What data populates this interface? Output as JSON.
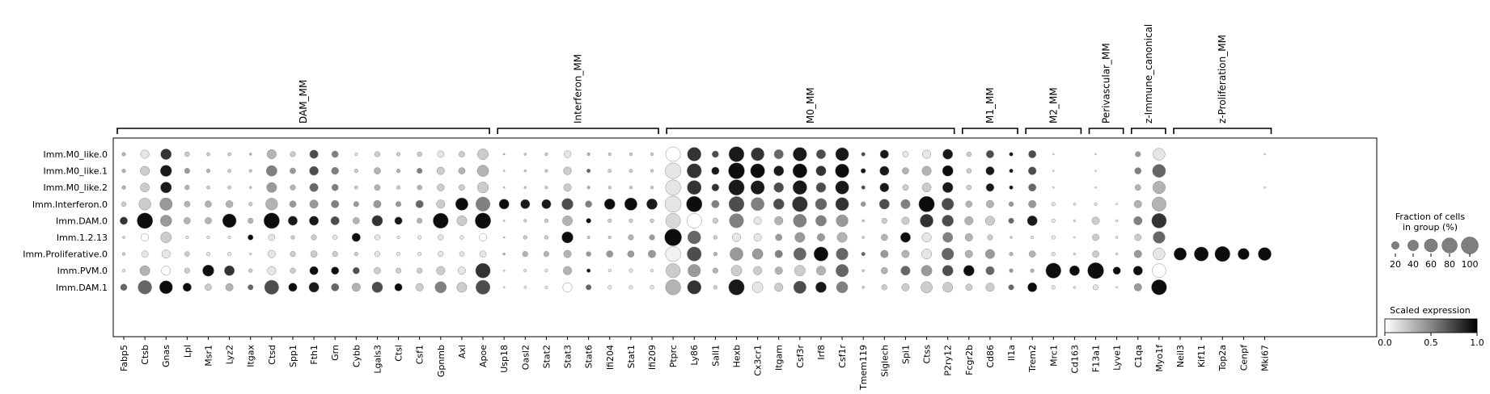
{
  "chart_data": {
    "type": "scatter",
    "subtype": "dotplot",
    "title": "",
    "xlabel": "",
    "ylabel": "",
    "rows": [
      "Imm.M0_like.0",
      "Imm.M0_like.1",
      "Imm.M0_like.2",
      "Imm.Interferon.0",
      "Imm.DAM.0",
      "Imm.1.2.13",
      "Imm.Proliferative.0",
      "Imm.PVM.0",
      "Imm.DAM.1"
    ],
    "columns": [
      "Fabp5",
      "Ctsb",
      "Gnas",
      "Lpl",
      "Msr1",
      "Lyz2",
      "Itgax",
      "Ctsd",
      "Spp1",
      "Fth1",
      "Grn",
      "Cybb",
      "Lgals3",
      "Ctsl",
      "Csf1",
      "Gpnmb",
      "Axl",
      "Apoe",
      "Usp18",
      "Oasl2",
      "Stat2",
      "Stat3",
      "Stat6",
      "Ifi204",
      "Stat1",
      "Ifi209",
      "Ptprc",
      "Ly86",
      "Sall1",
      "Hexb",
      "Cx3cr1",
      "Itgam",
      "Csf3r",
      "Irf8",
      "Csf1r",
      "Tmem119",
      "Siglech",
      "Spi1",
      "Ctss",
      "P2ry12",
      "Fcgr2b",
      "Cd86",
      "Il1a",
      "Trem2",
      "Mrc1",
      "Cd163",
      "F13a1",
      "Lyve1",
      "C1qa",
      "Myo1f",
      "Neil3",
      "Kif11",
      "Top2a",
      "Cenpf",
      "Mki67"
    ],
    "groups": [
      {
        "name": "DAM_MM",
        "start": 0,
        "end": 17
      },
      {
        "name": "Interferon_MM",
        "start": 18,
        "end": 25
      },
      {
        "name": "M0_MM",
        "start": 26,
        "end": 39
      },
      {
        "name": "M1_MM",
        "start": 40,
        "end": 42
      },
      {
        "name": "M2_MM",
        "start": 43,
        "end": 45
      },
      {
        "name": "Perivascular_MM",
        "start": 46,
        "end": 47
      },
      {
        "name": "z-Immune_canonical",
        "start": 48,
        "end": 49
      },
      {
        "name": "z-Proliferation_MM",
        "start": 50,
        "end": 54
      }
    ],
    "fraction": [
      [
        5,
        25,
        40,
        8,
        4,
        4,
        2,
        30,
        10,
        25,
        15,
        3,
        10,
        5,
        8,
        15,
        12,
        40,
        1,
        2,
        3,
        18,
        3,
        3,
        3,
        3,
        75,
        65,
        15,
        80,
        60,
        30,
        65,
        30,
        60,
        5,
        25,
        12,
        25,
        35,
        8,
        20,
        5,
        20,
        1,
        0,
        1,
        0,
        10,
        50,
        0,
        0,
        0,
        0,
        1
      ],
      [
        5,
        30,
        45,
        10,
        5,
        4,
        3,
        40,
        12,
        28,
        18,
        5,
        15,
        5,
        10,
        20,
        15,
        45,
        1,
        2,
        3,
        22,
        5,
        4,
        4,
        3,
        85,
        72,
        20,
        90,
        70,
        35,
        70,
        35,
        65,
        8,
        30,
        15,
        30,
        40,
        8,
        25,
        5,
        22,
        1,
        0,
        1,
        0,
        15,
        60,
        0,
        0,
        0,
        0,
        0
      ],
      [
        5,
        28,
        42,
        8,
        4,
        4,
        2,
        35,
        10,
        25,
        15,
        4,
        12,
        5,
        8,
        18,
        12,
        42,
        1,
        2,
        3,
        20,
        3,
        3,
        3,
        3,
        80,
        68,
        18,
        85,
        65,
        33,
        68,
        33,
        62,
        5,
        28,
        12,
        28,
        38,
        8,
        22,
        5,
        20,
        1,
        0,
        1,
        0,
        12,
        55,
        0,
        0,
        0,
        0,
        1
      ],
      [
        8,
        50,
        55,
        12,
        15,
        18,
        5,
        50,
        15,
        25,
        20,
        10,
        20,
        10,
        20,
        25,
        55,
        70,
        35,
        30,
        30,
        45,
        15,
        40,
        55,
        40,
        90,
        85,
        20,
        80,
        60,
        40,
        80,
        45,
        60,
        8,
        35,
        30,
        85,
        50,
        15,
        20,
        8,
        20,
        5,
        2,
        3,
        1,
        20,
        70,
        0,
        0,
        0,
        0,
        0
      ],
      [
        20,
        85,
        45,
        15,
        15,
        65,
        10,
        85,
        30,
        30,
        25,
        15,
        40,
        20,
        10,
        80,
        35,
        85,
        1,
        3,
        5,
        35,
        8,
        5,
        5,
        5,
        75,
        75,
        10,
        70,
        20,
        25,
        60,
        40,
        50,
        2,
        10,
        20,
        60,
        45,
        25,
        30,
        10,
        35,
        5,
        2,
        20,
        2,
        25,
        75,
        0,
        0,
        0,
        0,
        0
      ],
      [
        2,
        20,
        40,
        3,
        3,
        3,
        10,
        15,
        5,
        10,
        8,
        25,
        10,
        3,
        5,
        10,
        5,
        20,
        1,
        5,
        5,
        45,
        3,
        3,
        10,
        10,
        100,
        60,
        5,
        25,
        20,
        15,
        35,
        20,
        35,
        2,
        15,
        35,
        30,
        35,
        20,
        10,
        2,
        3,
        5,
        1,
        15,
        2,
        15,
        50,
        0,
        0,
        0,
        0,
        0
      ],
      [
        3,
        15,
        25,
        8,
        5,
        5,
        2,
        20,
        10,
        15,
        10,
        5,
        10,
        5,
        5,
        10,
        8,
        15,
        2,
        10,
        10,
        20,
        8,
        15,
        15,
        20,
        80,
        70,
        5,
        60,
        40,
        20,
        55,
        70,
        50,
        5,
        20,
        20,
        35,
        50,
        20,
        30,
        5,
        15,
        5,
        2,
        15,
        2,
        20,
        50,
        55,
        70,
        80,
        45,
        60
      ],
      [
        3,
        35,
        30,
        10,
        45,
        35,
        5,
        25,
        10,
        25,
        20,
        15,
        15,
        10,
        10,
        25,
        20,
        75,
        1,
        3,
        3,
        25,
        5,
        3,
        5,
        3,
        70,
        55,
        10,
        40,
        25,
        20,
        40,
        30,
        55,
        2,
        15,
        30,
        40,
        40,
        40,
        25,
        5,
        5,
        80,
        35,
        90,
        20,
        30,
        65,
        0,
        0,
        0,
        0,
        0
      ],
      [
        15,
        65,
        60,
        25,
        15,
        20,
        10,
        70,
        25,
        35,
        20,
        25,
        40,
        20,
        20,
        45,
        35,
        70,
        1,
        2,
        3,
        30,
        10,
        5,
        5,
        5,
        80,
        65,
        5,
        85,
        40,
        25,
        55,
        40,
        45,
        2,
        10,
        20,
        45,
        35,
        15,
        25,
        10,
        30,
        5,
        2,
        10,
        1,
        20,
        80,
        0,
        0,
        0,
        0,
        0
      ]
    ],
    "scaled": [
      [
        0.3,
        0.1,
        0.8,
        0.2,
        0.2,
        0.2,
        0.3,
        0.3,
        0.2,
        0.7,
        0.5,
        0.1,
        0.2,
        0.2,
        0.2,
        0.1,
        0.2,
        0.2,
        0.3,
        0.2,
        0.2,
        0.1,
        0.3,
        0.2,
        0.2,
        0.2,
        0.0,
        0.8,
        0.7,
        0.9,
        0.8,
        0.6,
        0.9,
        0.7,
        0.9,
        0.7,
        0.9,
        0.1,
        0.1,
        0.9,
        0.2,
        0.7,
        0.9,
        0.7,
        0.1,
        0.1,
        0.1,
        0.1,
        0.4,
        0.1,
        0.1,
        0.1,
        0.1,
        0.1,
        0.1
      ],
      [
        0.3,
        0.2,
        0.9,
        0.4,
        0.3,
        0.2,
        0.2,
        0.5,
        0.4,
        0.7,
        0.5,
        0.2,
        0.3,
        0.3,
        0.5,
        0.2,
        0.3,
        0.3,
        0.2,
        0.2,
        0.2,
        0.2,
        0.6,
        0.2,
        0.2,
        0.2,
        0.1,
        0.8,
        0.9,
        0.95,
        0.95,
        0.9,
        0.95,
        0.8,
        0.95,
        0.9,
        0.9,
        0.3,
        0.3,
        0.95,
        0.2,
        0.9,
        0.9,
        0.7,
        0.1,
        0.1,
        0.1,
        0.1,
        0.5,
        0.6,
        0.1,
        0.1,
        0.1,
        0.1,
        0.1
      ],
      [
        0.3,
        0.2,
        0.9,
        0.3,
        0.2,
        0.2,
        0.2,
        0.4,
        0.3,
        0.6,
        0.5,
        0.2,
        0.3,
        0.2,
        0.3,
        0.2,
        0.2,
        0.2,
        0.2,
        0.2,
        0.2,
        0.2,
        0.3,
        0.2,
        0.2,
        0.2,
        0.1,
        0.8,
        0.8,
        0.9,
        0.9,
        0.7,
        0.9,
        0.7,
        0.9,
        0.7,
        0.9,
        0.2,
        0.2,
        0.9,
        0.2,
        0.9,
        0.9,
        0.6,
        0.1,
        0.1,
        0.1,
        0.1,
        0.3,
        0.3,
        0.1,
        0.1,
        0.1,
        0.1,
        0.1
      ],
      [
        0.2,
        0.2,
        0.4,
        0.3,
        0.3,
        0.3,
        0.2,
        0.3,
        0.4,
        0.4,
        0.5,
        0.4,
        0.4,
        0.4,
        0.6,
        0.2,
        0.95,
        0.5,
        0.95,
        0.9,
        0.9,
        0.7,
        0.5,
        0.95,
        0.95,
        0.9,
        0.1,
        0.95,
        0.5,
        0.7,
        0.5,
        0.7,
        0.8,
        0.6,
        0.8,
        0.4,
        0.7,
        0.5,
        0.95,
        0.7,
        0.3,
        0.3,
        0.4,
        0.4,
        0.1,
        0.1,
        0.1,
        0.1,
        0.3,
        0.3,
        0.1,
        0.1,
        0.1,
        0.1,
        0.1
      ],
      [
        0.8,
        0.95,
        0.4,
        0.3,
        0.3,
        0.95,
        0.3,
        0.95,
        0.9,
        0.9,
        0.7,
        0.3,
        0.8,
        0.9,
        0.3,
        0.95,
        0.2,
        0.95,
        0.2,
        0.2,
        0.2,
        0.3,
        0.95,
        0.2,
        0.2,
        0.2,
        0.15,
        0.0,
        0.2,
        0.5,
        0.1,
        0.3,
        0.5,
        0.5,
        0.4,
        0.2,
        0.2,
        0.2,
        0.8,
        0.7,
        0.3,
        0.2,
        0.6,
        0.9,
        0.1,
        0.1,
        0.2,
        0.1,
        0.5,
        0.8,
        0.1,
        0.1,
        0.1,
        0.1,
        0.1
      ],
      [
        0.2,
        0.0,
        0.2,
        0.1,
        0.1,
        0.1,
        0.95,
        0.1,
        0.2,
        0.2,
        0.1,
        0.95,
        0.1,
        0.1,
        0.1,
        0.1,
        0.1,
        0.0,
        0.2,
        0.2,
        0.2,
        0.95,
        0.2,
        0.2,
        0.3,
        0.4,
        0.95,
        0.6,
        0.2,
        0.1,
        0.1,
        0.4,
        0.4,
        0.4,
        0.3,
        0.2,
        0.3,
        0.95,
        0.1,
        0.5,
        0.3,
        0.2,
        0.2,
        0.1,
        0.1,
        0.1,
        0.2,
        0.1,
        0.2,
        0.6,
        0.1,
        0.1,
        0.1,
        0.1,
        0.1
      ],
      [
        0.2,
        0.1,
        0.1,
        0.2,
        0.1,
        0.1,
        0.1,
        0.1,
        0.2,
        0.2,
        0.2,
        0.2,
        0.1,
        0.1,
        0.1,
        0.1,
        0.1,
        0.1,
        0.3,
        0.3,
        0.3,
        0.3,
        0.4,
        0.4,
        0.4,
        0.4,
        0.05,
        0.7,
        0.3,
        0.4,
        0.4,
        0.5,
        0.6,
        0.95,
        0.6,
        0.6,
        0.4,
        0.3,
        0.1,
        0.6,
        0.3,
        0.4,
        0.3,
        0.3,
        0.1,
        0.1,
        0.2,
        0.1,
        0.4,
        0.1,
        0.95,
        0.95,
        0.95,
        0.95,
        0.95
      ],
      [
        0.1,
        0.3,
        0.0,
        0.2,
        0.95,
        0.8,
        0.2,
        0.1,
        0.2,
        0.95,
        0.95,
        0.7,
        0.2,
        0.2,
        0.2,
        0.2,
        0.1,
        0.8,
        0.1,
        0.1,
        0.1,
        0.3,
        0.9,
        0.1,
        0.1,
        0.1,
        0.2,
        0.4,
        0.3,
        0.2,
        0.2,
        0.3,
        0.2,
        0.3,
        0.6,
        0.2,
        0.3,
        0.6,
        0.4,
        0.7,
        0.95,
        0.6,
        0.4,
        0.3,
        0.95,
        0.95,
        0.95,
        0.95,
        0.95,
        0.0,
        0.1,
        0.1,
        0.1,
        0.1,
        0.1
      ],
      [
        0.6,
        0.6,
        0.95,
        0.95,
        0.2,
        0.3,
        0.6,
        0.7,
        0.95,
        0.9,
        0.6,
        0.3,
        0.7,
        0.95,
        0.2,
        0.5,
        0.2,
        0.7,
        0.1,
        0.1,
        0.1,
        0.0,
        0.6,
        0.1,
        0.1,
        0.1,
        0.3,
        0.8,
        0.2,
        0.9,
        0.1,
        0.2,
        0.7,
        0.9,
        0.5,
        0.2,
        0.2,
        0.2,
        0.2,
        0.2,
        0.2,
        0.2,
        0.6,
        0.95,
        0.1,
        0.1,
        0.1,
        0.1,
        0.4,
        0.95,
        0.1,
        0.1,
        0.1,
        0.1,
        0.1
      ]
    ],
    "size_legend": {
      "title": "Fraction of cells\nin group (%)",
      "values": [
        20,
        40,
        60,
        80,
        100
      ],
      "labels": [
        "20",
        "40",
        "60",
        "80",
        "100"
      ]
    },
    "color_legend": {
      "title": "Scaled expression",
      "range": [
        0.0,
        1.0
      ],
      "ticks": [
        "0.0",
        "0.5",
        "1.0"
      ],
      "colormap": "Greys"
    }
  }
}
